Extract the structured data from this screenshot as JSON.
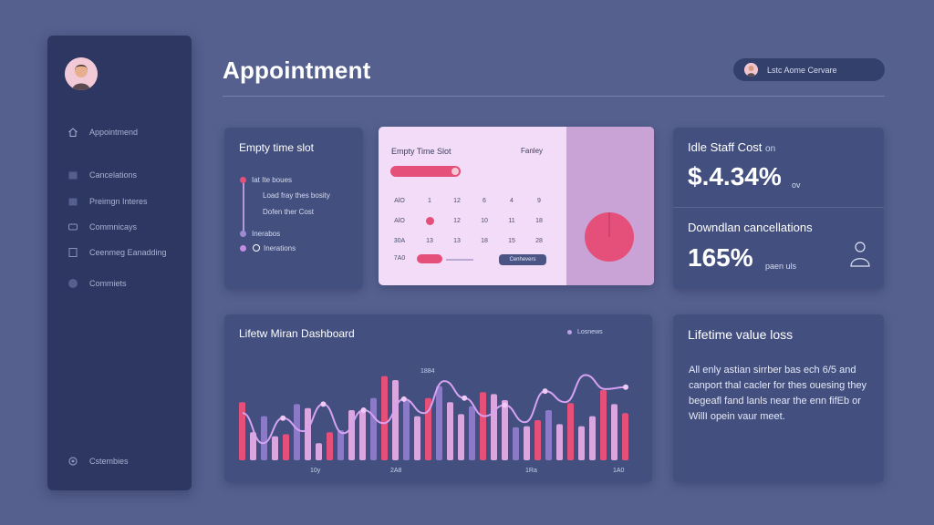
{
  "header": {
    "title": "Appointment",
    "user_name": "Lstc Aome Cervare"
  },
  "sidebar": {
    "items": [
      {
        "label": "Appointmend",
        "icon": "home-icon"
      },
      {
        "label": "Cancelations",
        "icon": "calendar-icon"
      },
      {
        "label": "Preimgn Interes",
        "icon": "wallet-icon"
      },
      {
        "label": "Commnicays",
        "icon": "chat-icon"
      },
      {
        "label": "Ceenmeg Eanadding",
        "icon": "document-icon"
      },
      {
        "label": "Commiets",
        "icon": "circle-icon"
      }
    ],
    "bottom_item": {
      "label": "Cstembies",
      "icon": "settings-icon"
    }
  },
  "empty_slot_card": {
    "title": "Empty time slot",
    "items": [
      "Iat Ite boues",
      "Load fray thes bosity",
      "Dofen ther Cost",
      "Inerabos",
      "Inerations"
    ]
  },
  "calendar_card": {
    "title": "Empty Time Slot",
    "label": "Fanley",
    "rows": [
      [
        "AlO",
        "1",
        "12",
        "6",
        "4",
        "9"
      ],
      [
        "AlO",
        "",
        "12",
        "10",
        "11",
        "18"
      ],
      [
        "30A",
        "13",
        "13",
        "18",
        "15",
        "28"
      ],
      [
        "7A0",
        "",
        "",
        "",
        "",
        ""
      ]
    ],
    "button_label": "Cenhevers",
    "colors": {
      "accent": "#e4507a",
      "panel": "#f3dcf7",
      "side": "#c9a3d6"
    }
  },
  "stats_card": {
    "idle_title": "Idle Staff Cost",
    "idle_suffix": "on",
    "idle_value": "$.4.34%",
    "idle_unit": "ov",
    "cancel_title": "Downdlan cancellations",
    "cancel_value": "165%",
    "cancel_unit": "paen uls"
  },
  "chart_card": {
    "title": "Lifetw Miran Dashboard",
    "legend": "Losnews"
  },
  "chart_data": {
    "type": "bar",
    "annotation": "1884",
    "x_tick_labels": [
      "10y",
      "2A8",
      "1Ra",
      "1A0"
    ],
    "series": [
      {
        "values": [
          0.58,
          0.28,
          0.44,
          0.24,
          0.26,
          0.56,
          0.52,
          0.17,
          0.28,
          0.3,
          0.5,
          0.5,
          0.62,
          0.84,
          0.8,
          0.6,
          0.44,
          0.62,
          0.74,
          0.58,
          0.46,
          0.54,
          0.68,
          0.66,
          0.6,
          0.33,
          0.34,
          0.4,
          0.5,
          0.36,
          0.57,
          0.34,
          0.44,
          0.7,
          0.56,
          0.47
        ]
      },
      {
        "values": [
          0.46,
          0.34,
          0.76,
          0.55,
          0.66,
          0.48,
          0.48,
          0.33,
          0.42,
          0.41
        ]
      },
      {
        "values": [
          0.5,
          0.34,
          0.35,
          0.53,
          0.56,
          0.44,
          0.28,
          0.25,
          0.46,
          0.74,
          0.37,
          0.29
        ]
      }
    ],
    "colors": {
      "pink": "#e4507a",
      "light": "#d9a6e0",
      "mid": "#8b7ac8",
      "line": "#d8a2f2"
    }
  },
  "lifetime_card": {
    "title": "Lifetime value loss",
    "body": "All enly astian sirrber bas ech 6/5 and canport thal cacler for thes ouesing they begeafl fand lanls near the enn fifEb or WillI opein vaur meet."
  }
}
